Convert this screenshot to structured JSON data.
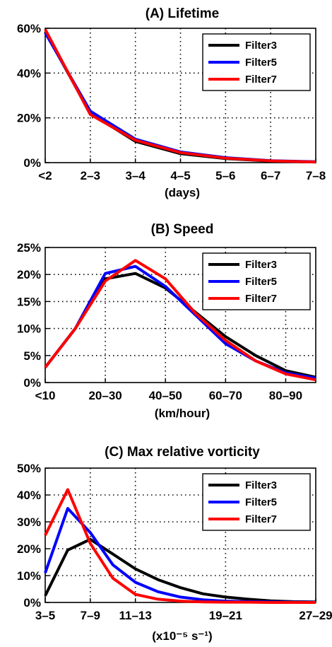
{
  "chart_data": [
    {
      "type": "line",
      "title": "(A) Lifetime",
      "xlabel": "(days)",
      "ylabel": "",
      "categories": [
        "<2",
        "2–3",
        "3–4",
        "4–5",
        "5–6",
        "6–7",
        "7–8"
      ],
      "x_ticks": [
        0,
        1,
        2,
        3,
        4,
        5,
        6
      ],
      "ylim": [
        0,
        60
      ],
      "y_ticks": [
        0,
        20,
        40,
        60
      ],
      "y_tick_labels": [
        "0%",
        "20%",
        "40%",
        "60%"
      ],
      "x_range": [
        0,
        6
      ],
      "grid": true,
      "legend_position": "top-right",
      "series": [
        {
          "name": "Filter3",
          "color": "#000000",
          "x": [
            0,
            1,
            2,
            3,
            4,
            5,
            6
          ],
          "values": [
            58.5,
            22.0,
            9.5,
            4.0,
            1.8,
            0.7,
            0.3
          ]
        },
        {
          "name": "Filter5",
          "color": "#0000ff",
          "x": [
            0,
            1,
            2,
            3,
            4,
            5,
            6
          ],
          "values": [
            58.0,
            23.0,
            10.5,
            4.8,
            2.2,
            0.9,
            0.4
          ]
        },
        {
          "name": "Filter7",
          "color": "#ff0000",
          "x": [
            0,
            1,
            2,
            3,
            4,
            5,
            6
          ],
          "values": [
            59.5,
            21.5,
            10.0,
            4.5,
            2.0,
            0.8,
            0.3
          ]
        }
      ]
    },
    {
      "type": "line",
      "title": "(B) Speed",
      "xlabel": "(km/hour)",
      "ylabel": "",
      "categories": [
        "<10",
        "20–30",
        "40–50",
        "60–70",
        "80–90"
      ],
      "x_ticks": [
        0,
        2,
        4,
        6,
        8
      ],
      "ylim": [
        0,
        25
      ],
      "y_ticks": [
        0,
        5,
        10,
        15,
        20,
        25
      ],
      "y_tick_labels": [
        "0%",
        "5%",
        "10%",
        "15%",
        "20%",
        "25%"
      ],
      "x_range": [
        0,
        9
      ],
      "grid": true,
      "legend_position": "top-right",
      "series": [
        {
          "name": "Filter3",
          "color": "#000000",
          "x": [
            0,
            1,
            2,
            3,
            4,
            5,
            6,
            7,
            8,
            9
          ],
          "values": [
            2.8,
            10.0,
            19.2,
            20.2,
            17.5,
            13.0,
            8.5,
            5.0,
            2.2,
            1.0
          ]
        },
        {
          "name": "Filter5",
          "color": "#0000ff",
          "x": [
            0,
            1,
            2,
            3,
            4,
            5,
            6,
            7,
            8,
            9
          ],
          "values": [
            2.8,
            10.0,
            20.2,
            21.5,
            17.8,
            12.5,
            7.2,
            4.0,
            1.8,
            0.8
          ]
        },
        {
          "name": "Filter7",
          "color": "#ff0000",
          "x": [
            0,
            1,
            2,
            3,
            4,
            5,
            6,
            7,
            8,
            9
          ],
          "values": [
            2.8,
            10.0,
            18.8,
            22.6,
            19.2,
            12.8,
            7.8,
            4.0,
            1.6,
            0.5
          ]
        }
      ]
    },
    {
      "type": "line",
      "title": "(C) Max relative vorticity",
      "xlabel": "(x10⁻⁵ s⁻¹)",
      "ylabel": "",
      "categories": [
        "3–5",
        "7–9",
        "11–13",
        "19–21",
        "27–29"
      ],
      "x_ticks": [
        0,
        2,
        4,
        8,
        12
      ],
      "ylim": [
        0,
        50
      ],
      "y_ticks": [
        0,
        10,
        20,
        30,
        40,
        50
      ],
      "y_tick_labels": [
        "0%",
        "10%",
        "20%",
        "30%",
        "40%",
        "50%"
      ],
      "x_range": [
        0,
        12
      ],
      "grid": true,
      "legend_position": "top-right",
      "series": [
        {
          "name": "Filter3",
          "color": "#000000",
          "x": [
            0,
            1,
            2,
            3,
            4,
            5,
            6,
            7,
            8,
            9,
            10,
            11,
            12
          ],
          "values": [
            2.5,
            19.5,
            23.5,
            18.0,
            12.5,
            8.5,
            5.5,
            3.2,
            2.0,
            1.2,
            0.6,
            0.3,
            0.2
          ]
        },
        {
          "name": "Filter5",
          "color": "#0000ff",
          "x": [
            0,
            1,
            2,
            3,
            4,
            5,
            6,
            7,
            8,
            9,
            10,
            11,
            12
          ],
          "values": [
            11.0,
            35.0,
            26.0,
            14.0,
            7.5,
            4.0,
            2.0,
            1.0,
            0.5,
            0.3,
            0.2,
            0.1,
            0.1
          ]
        },
        {
          "name": "Filter7",
          "color": "#ff0000",
          "x": [
            0,
            1,
            2,
            3,
            4,
            5,
            6,
            7,
            8,
            9,
            10,
            11,
            12
          ],
          "values": [
            25.0,
            42.0,
            22.0,
            9.0,
            3.0,
            1.2,
            0.5,
            0.2,
            0.1,
            0.1,
            0.0,
            0.0,
            0.0
          ]
        }
      ]
    }
  ]
}
